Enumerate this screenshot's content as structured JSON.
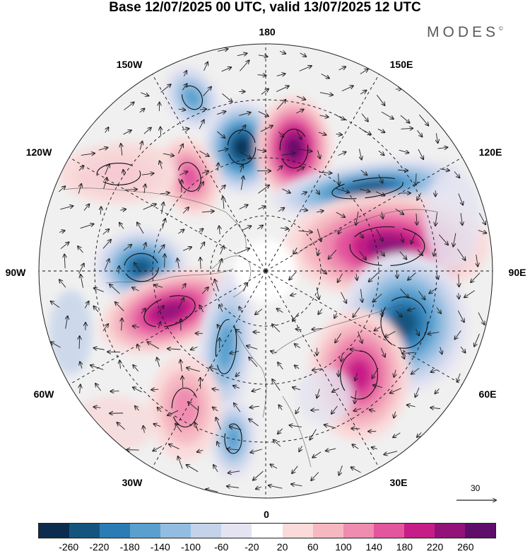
{
  "title": "Base 12/07/2025 00 UTC, valid 13/07/2025 12 UTC",
  "brand": "MODES",
  "brand_mark": "©",
  "longitude_labels": {
    "north": "180",
    "south": "0",
    "west": "90W",
    "east": "90E",
    "nw_upper": "150W",
    "nw_lower": "120W",
    "ne_upper": "150E",
    "ne_lower": "120E",
    "sw_upper": "60W",
    "sw_lower": "30W",
    "se_upper": "60E",
    "se_lower": "30E"
  },
  "reference_vector": {
    "label": "30"
  },
  "colorbar": {
    "colors": [
      "#0b2c4f",
      "#14557f",
      "#2b7cb4",
      "#5aa0cf",
      "#93bde0",
      "#c4d3ea",
      "#e3e3f1",
      "#ffffff",
      "#fadada",
      "#f5b8c1",
      "#ef8cb0",
      "#e3559d",
      "#c71d87",
      "#93127a",
      "#5e0d6a"
    ],
    "tick_labels": [
      "-260",
      "-220",
      "-180",
      "-140",
      "-100",
      "-60",
      "-20",
      "20",
      "60",
      "100",
      "140",
      "180",
      "220",
      "260"
    ]
  },
  "anomalies": [
    {
      "name": "cyclone-150w",
      "sign": "neg",
      "level": 3
    },
    {
      "name": "cyclone-170w",
      "sign": "neg",
      "level": 6
    },
    {
      "name": "anticyclone-170e",
      "sign": "pos",
      "level": 6
    },
    {
      "name": "cyclone-120e",
      "sign": "neg",
      "level": 5
    },
    {
      "name": "anticyclone-100e",
      "sign": "pos",
      "level": 5
    },
    {
      "name": "cyclone-70e",
      "sign": "neg",
      "level": 5
    },
    {
      "name": "anticyclone-45e",
      "sign": "pos",
      "level": 4
    },
    {
      "name": "cyclone-90w",
      "sign": "neg",
      "level": 5
    },
    {
      "name": "anticyclone-70w",
      "sign": "pos",
      "level": 5
    },
    {
      "name": "anticyclone-125w",
      "sign": "pos",
      "level": 3
    },
    {
      "name": "anticyclone-135w",
      "sign": "pos",
      "level": 2
    },
    {
      "name": "cyclone-20w",
      "sign": "neg",
      "level": 3
    },
    {
      "name": "cyclone-35w",
      "sign": "neg",
      "level": 3
    },
    {
      "name": "anticyclone-45w",
      "sign": "pos",
      "level": 2
    }
  ]
}
